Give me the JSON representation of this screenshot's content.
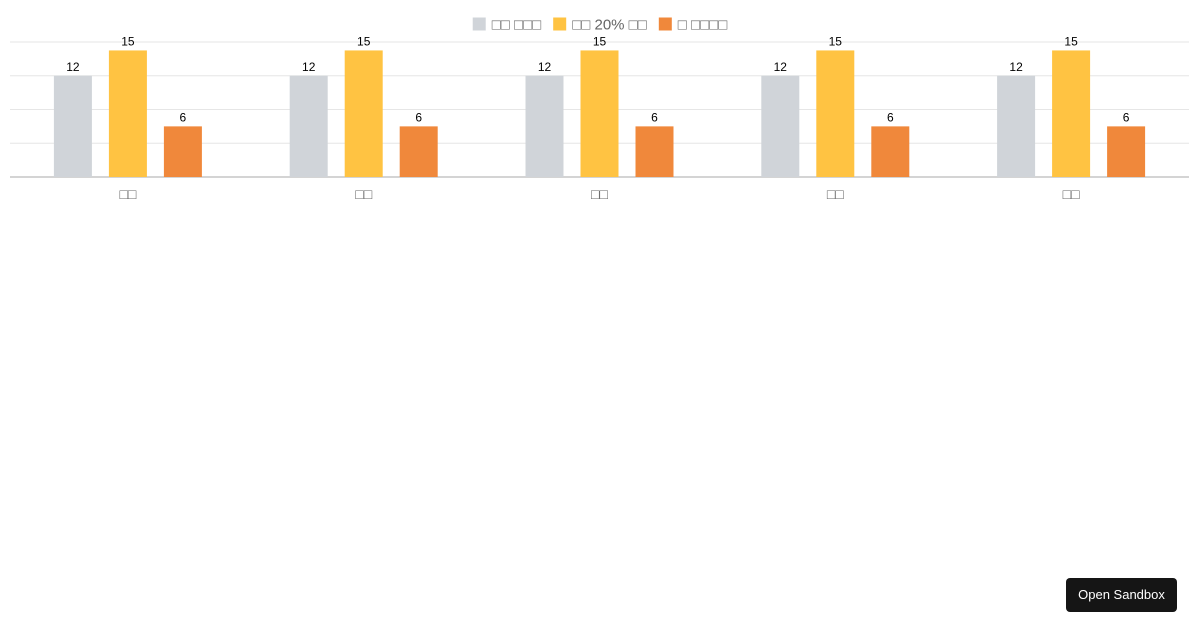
{
  "chart_data": {
    "type": "bar",
    "categories": [
      "□□",
      "□□",
      "□□",
      "□□",
      "□□"
    ],
    "series": [
      {
        "name": "□□ □□□",
        "color": "#d0d4d9",
        "values": [
          12,
          12,
          12,
          12,
          12
        ]
      },
      {
        "name": "□□ 20% □□",
        "color": "#ffc342",
        "values": [
          15,
          15,
          15,
          15,
          15
        ]
      },
      {
        "name": "□ □□□□",
        "color": "#f0883b",
        "values": [
          6,
          6,
          6,
          6,
          6
        ]
      }
    ],
    "ylim": [
      0,
      16
    ],
    "grid": true,
    "legend_position": "top-center",
    "data_labels": true
  },
  "sandbox_button": {
    "label": "Open Sandbox"
  }
}
